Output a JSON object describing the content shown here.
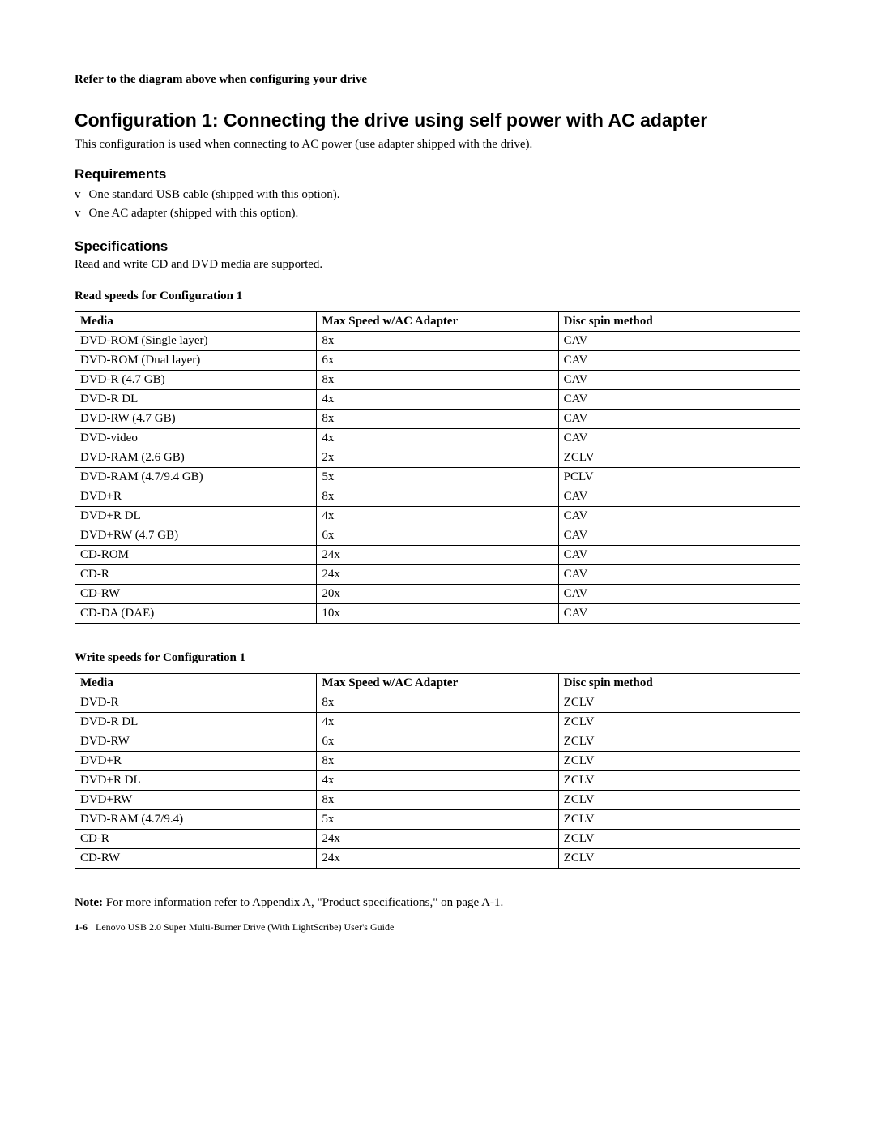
{
  "top_instruction": "Refer to the diagram above when configuring your drive",
  "config1": {
    "heading": "Configuration 1: Connecting the drive using self power with AC adapter",
    "description": "This configuration is used when connecting to AC power (use adapter shipped with the drive)."
  },
  "requirements": {
    "heading": "Requirements",
    "items": [
      "One standard USB cable (shipped with this option).",
      "One AC adapter (shipped with this option)."
    ]
  },
  "specifications": {
    "heading": "Specifications",
    "description": "Read and write CD and DVD media are supported."
  },
  "read_table": {
    "caption": "Read speeds for Configuration 1",
    "columns": [
      "Media",
      "Max Speed w/AC Adapter",
      "Disc spin method"
    ],
    "rows": [
      [
        "DVD-ROM (Single layer)",
        "8x",
        "CAV"
      ],
      [
        "DVD-ROM (Dual layer)",
        "6x",
        "CAV"
      ],
      [
        "DVD-R (4.7 GB)",
        "8x",
        "CAV"
      ],
      [
        "DVD-R DL",
        "4x",
        "CAV"
      ],
      [
        "DVD-RW (4.7 GB)",
        "8x",
        "CAV"
      ],
      [
        "DVD-video",
        "4x",
        "CAV"
      ],
      [
        "DVD-RAM (2.6 GB)",
        "2x",
        "ZCLV"
      ],
      [
        "DVD-RAM (4.7/9.4 GB)",
        "5x",
        "PCLV"
      ],
      [
        "DVD+R",
        "8x",
        "CAV"
      ],
      [
        "DVD+R DL",
        "4x",
        "CAV"
      ],
      [
        "DVD+RW (4.7 GB)",
        "6x",
        "CAV"
      ],
      [
        "CD-ROM",
        "24x",
        "CAV"
      ],
      [
        "CD-R",
        "24x",
        "CAV"
      ],
      [
        "CD-RW",
        "20x",
        "CAV"
      ],
      [
        "CD-DA (DAE)",
        "10x",
        "CAV"
      ]
    ]
  },
  "write_table": {
    "caption": "Write speeds for Configuration 1",
    "columns": [
      "Media",
      "Max Speed w/AC Adapter",
      "Disc spin method"
    ],
    "rows": [
      [
        "DVD-R",
        "8x",
        "ZCLV"
      ],
      [
        "DVD-R DL",
        "4x",
        "ZCLV"
      ],
      [
        "DVD-RW",
        "6x",
        "ZCLV"
      ],
      [
        "DVD+R",
        "8x",
        "ZCLV"
      ],
      [
        "DVD+R DL",
        "4x",
        "ZCLV"
      ],
      [
        "DVD+RW",
        "8x",
        "ZCLV"
      ],
      [
        "DVD-RAM (4.7/9.4)",
        "5x",
        "ZCLV"
      ],
      [
        "CD-R",
        "24x",
        "ZCLV"
      ],
      [
        "CD-RW",
        "24x",
        "ZCLV"
      ]
    ]
  },
  "note": {
    "label": "Note:",
    "text": " For more information refer to Appendix A, \"Product specifications,\" on page A-1."
  },
  "footer": {
    "page": "1-6",
    "title": "Lenovo USB 2.0 Super Multi-Burner Drive (With LightScribe) User's Guide"
  }
}
